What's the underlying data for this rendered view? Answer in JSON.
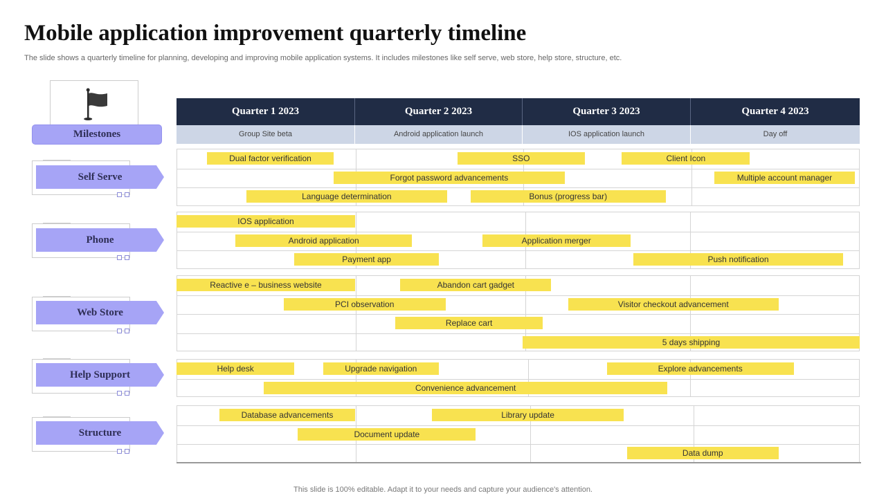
{
  "title": "Mobile application improvement quarterly timeline",
  "subtitle": "The slide shows a quarterly timeline for planning, developing and improving mobile application systems. It includes milestones like self serve, web store, help store, structure, etc.",
  "footer": "This slide is 100% editable. Adapt it to your needs and capture your audience's attention.",
  "milestones_label": "Milestones",
  "quarters": [
    {
      "label": "Quarter  1 2023",
      "milestone": "Group Site beta"
    },
    {
      "label": "Quarter  2 2023",
      "milestone": "Android application launch"
    },
    {
      "label": "Quarter  3 2023",
      "milestone": "IOS application launch"
    },
    {
      "label": "Quarter  4 2023",
      "milestone": "Day off"
    }
  ],
  "categories": [
    {
      "label": "Self Serve",
      "tasks": [
        {
          "label": "Dual factor verification",
          "row": 0,
          "start": 0.17,
          "end": 0.88
        },
        {
          "label": "SSO",
          "row": 0,
          "start": 1.61,
          "end": 2.37
        },
        {
          "label": "Client Icon",
          "row": 0,
          "start": 2.59,
          "end": 3.35
        },
        {
          "label": "Forgot password advancements",
          "row": 1,
          "start": 0.88,
          "end": 2.25
        },
        {
          "label": "Multiple account manager",
          "row": 1,
          "start": 3.14,
          "end": 3.97
        },
        {
          "label": "Language determination",
          "row": 2,
          "start": 0.39,
          "end": 1.55
        },
        {
          "label": "Bonus (progress bar)",
          "row": 2,
          "start": 1.69,
          "end": 2.85
        }
      ]
    },
    {
      "label": "Phone",
      "tasks": [
        {
          "label": "IOS application",
          "row": 0,
          "start": 0.0,
          "end": 1.0
        },
        {
          "label": "Android application",
          "row": 1,
          "start": 0.33,
          "end": 1.34
        },
        {
          "label": "Application merger",
          "row": 1,
          "start": 1.76,
          "end": 2.64
        },
        {
          "label": "Payment app",
          "row": 2,
          "start": 0.66,
          "end": 1.5
        },
        {
          "label": "Push notification",
          "row": 2,
          "start": 2.66,
          "end": 3.9
        }
      ]
    },
    {
      "label": "Web Store",
      "tasks": [
        {
          "label": "Reactive e – business website",
          "row": 0,
          "start": 0.0,
          "end": 1.0
        },
        {
          "label": "Abandon cart gadget",
          "row": 0,
          "start": 1.27,
          "end": 2.17
        },
        {
          "label": "PCI observation",
          "row": 1,
          "start": 0.6,
          "end": 1.54
        },
        {
          "label": "Visitor checkout advancement",
          "row": 1,
          "start": 2.27,
          "end": 3.52
        },
        {
          "label": "Replace cart",
          "row": 2,
          "start": 1.24,
          "end": 2.12
        },
        {
          "label": "5 days shipping",
          "row": 3,
          "start": 2.0,
          "end": 4.0
        }
      ]
    },
    {
      "label": "Help Support",
      "tasks": [
        {
          "label": "Help desk",
          "row": 0,
          "start": 0.0,
          "end": 0.66
        },
        {
          "label": "Upgrade navigation",
          "row": 0,
          "start": 0.82,
          "end": 1.5
        },
        {
          "label": "Explore advancements",
          "row": 0,
          "start": 2.5,
          "end": 3.61
        },
        {
          "label": "Convenience advancement",
          "row": 1,
          "start": 0.49,
          "end": 2.86
        }
      ]
    },
    {
      "label": "Structure",
      "tasks": [
        {
          "label": "Database advancements",
          "row": 0,
          "start": 0.24,
          "end": 1.0
        },
        {
          "label": "Library update",
          "row": 0,
          "start": 1.46,
          "end": 2.6
        },
        {
          "label": "Document update",
          "row": 1,
          "start": 0.68,
          "end": 1.72
        },
        {
          "label": "Data dump",
          "row": 2,
          "start": 2.62,
          "end": 3.52
        }
      ]
    }
  ],
  "colors": {
    "header": "#202c45",
    "subheader": "#cdd6e6",
    "bar": "#f8e250",
    "category": "#a6a4f6"
  },
  "icons": {
    "milestones": "flag-icon"
  }
}
